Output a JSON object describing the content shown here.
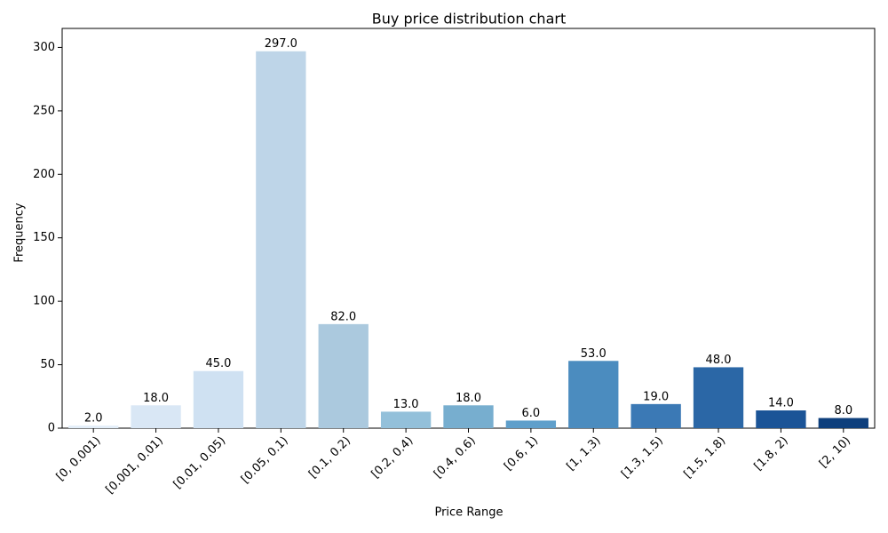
{
  "chart_data": {
    "type": "bar",
    "title": "Buy price distribution chart",
    "x_label": "Price Range",
    "y_label": "Frequency",
    "categories": [
      "[0, 0.001)",
      "[0.001, 0.01)",
      "[0.01, 0.05)",
      "[0.05, 0.1)",
      "[0.1, 0.2)",
      "[0.2, 0.4)",
      "[0.4, 0.6)",
      "[0.6, 1)",
      "[1, 1.3)",
      "[1.3, 1.5)",
      "[1.5, 1.8)",
      "[1.8, 2)",
      "[2, 10)"
    ],
    "values": [
      2,
      18,
      45,
      297,
      82,
      13,
      18,
      6,
      53,
      19,
      48,
      14,
      8
    ],
    "value_labels": [
      "2.0",
      "18.0",
      "45.0",
      "297.0",
      "82.0",
      "13.0",
      "18.0",
      "6.0",
      "53.0",
      "19.0",
      "48.0",
      "14.0",
      "8.0"
    ],
    "colors": [
      "#e3eef9",
      "#d9e7f5",
      "#cfe1f2",
      "#bed5e8",
      "#abc9de",
      "#93c0da",
      "#77aecf",
      "#5f9fcb",
      "#4b8cbf",
      "#3b79b5",
      "#2b67a6",
      "#1b5497",
      "#0e3f7c"
    ],
    "ylim": [
      0,
      315
    ],
    "yticks": [
      0,
      50,
      100,
      150,
      200,
      250,
      300
    ],
    "grid": false
  }
}
